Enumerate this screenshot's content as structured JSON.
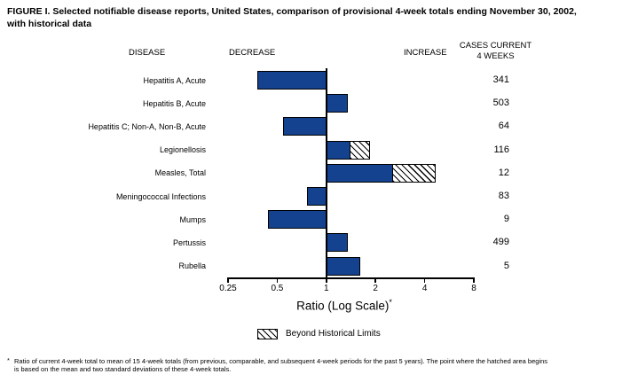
{
  "title": {
    "line1": "FIGURE I. Selected notifiable disease reports, United States, comparison of provisional 4-week totals ending November 30, 2002,",
    "line2": "with historical data"
  },
  "headers": {
    "disease": "DISEASE",
    "decrease": "DECREASE",
    "increase": "INCREASE",
    "cases_line1": "CASES CURRENT",
    "cases_line2": "4 WEEKS"
  },
  "chart_data": {
    "type": "bar",
    "orientation": "horizontal",
    "title": "FIGURE I. Selected notifiable disease reports, United States, comparison of provisional 4-week totals ending November 30, 2002, with historical data",
    "x_scale": "log",
    "x_range": [
      0.25,
      8
    ],
    "baseline": 1,
    "grid": false,
    "x_axis": {
      "label": "Ratio (Log Scale)",
      "label_superscript": "*",
      "ticks": [
        "0.25",
        "0.5",
        "1",
        "2",
        "4",
        "8"
      ]
    },
    "rows": [
      {
        "disease": "Hepatitis A, Acute",
        "ratio": 0.38,
        "hatch_start": null,
        "cases": 341
      },
      {
        "disease": "Hepatitis B, Acute",
        "ratio": 1.35,
        "hatch_start": null,
        "cases": 503
      },
      {
        "disease": "Hepatitis C; Non-A, Non-B, Acute",
        "ratio": 0.54,
        "hatch_start": null,
        "cases": 64
      },
      {
        "disease": "Legionellosis",
        "ratio": 1.85,
        "hatch_start": 1.4,
        "cases": 116
      },
      {
        "disease": "Measles, Total",
        "ratio": 4.7,
        "hatch_start": 2.55,
        "cases": 12
      },
      {
        "disease": "Meningococcal Infections",
        "ratio": 0.76,
        "hatch_start": null,
        "cases": 83
      },
      {
        "disease": "Mumps",
        "ratio": 0.44,
        "hatch_start": null,
        "cases": 9
      },
      {
        "disease": "Pertussis",
        "ratio": 1.35,
        "hatch_start": null,
        "cases": 499
      },
      {
        "disease": "Rubella",
        "ratio": 1.62,
        "hatch_start": null,
        "cases": 5
      }
    ],
    "legend": {
      "hatch_label": "Beyond Historical Limits"
    }
  },
  "footnote": {
    "marker": "*",
    "line1": "Ratio of current 4-week total to mean of 15 4-week totals (from previous, comparable, and subsequent 4-week periods for the past 5 years). The point where the hatched area begins",
    "line2": "is based on the mean and two standard deviations of these 4-week totals."
  },
  "colors": {
    "bar": "#14428F",
    "text": "#000000",
    "background": "#FFFFFF"
  }
}
